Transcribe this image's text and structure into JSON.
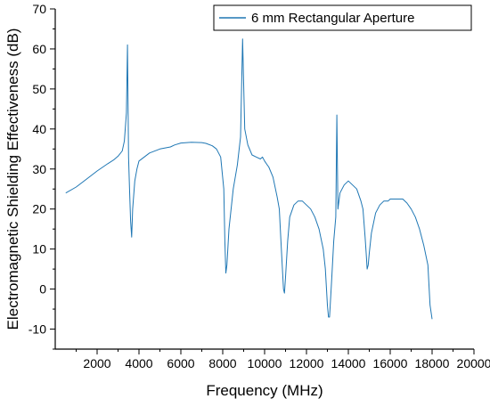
{
  "chart_data": {
    "type": "line",
    "title": "",
    "xlabel": "Frequency (MHz)",
    "ylabel": "Electromagnetic Shielding Effectiveness (dB)",
    "xlim": [
      0,
      20000
    ],
    "ylim": [
      -15,
      70
    ],
    "x_ticks": [
      2000,
      4000,
      6000,
      8000,
      10000,
      12000,
      14000,
      16000,
      18000,
      20000
    ],
    "x_tick_labels": [
      "2000",
      "4000",
      "6000",
      "8000",
      "10000",
      "12000",
      "14000",
      "16000",
      "18000",
      "20000"
    ],
    "y_ticks": [
      -10,
      0,
      10,
      20,
      30,
      40,
      50,
      60,
      70
    ],
    "y_tick_labels": [
      "-10",
      "0",
      "10",
      "20",
      "30",
      "40",
      "50",
      "60",
      "70"
    ],
    "grid": false,
    "legend_position": "top-right",
    "line_color": "#1f77b4",
    "series": [
      {
        "name": "6 mm Rectangular Aperture",
        "color": "#1f77b4",
        "x": [
          500,
          1000,
          1500,
          2000,
          2500,
          2800,
          3000,
          3200,
          3300,
          3400,
          3450,
          3500,
          3550,
          3600,
          3650,
          3700,
          3800,
          3900,
          4000,
          4500,
          5000,
          5500,
          5700,
          6000,
          6500,
          7000,
          7200,
          7500,
          7700,
          7900,
          8050,
          8100,
          8150,
          8200,
          8300,
          8500,
          8700,
          8850,
          8950,
          9050,
          9200,
          9400,
          9600,
          9800,
          9900,
          10000,
          10100,
          10200,
          10400,
          10600,
          10700,
          10800,
          10900,
          10950,
          11000,
          11100,
          11200,
          11400,
          11600,
          11800,
          12000,
          12200,
          12400,
          12600,
          12800,
          12900,
          13000,
          13050,
          13100,
          13200,
          13300,
          13400,
          13450,
          13500,
          13600,
          13800,
          14000,
          14200,
          14400,
          14600,
          14700,
          14800,
          14850,
          14900,
          14950,
          15000,
          15100,
          15300,
          15500,
          15700,
          15900,
          16000,
          16200,
          16400,
          16600,
          16800,
          17000,
          17200,
          17400,
          17600,
          17800,
          17900,
          18000
        ],
        "y": [
          24,
          25.5,
          27.5,
          29.5,
          31.3,
          32.3,
          33.2,
          34.5,
          37,
          44,
          61,
          33,
          25,
          17,
          13,
          20,
          27,
          30,
          32,
          34,
          35,
          35.5,
          36,
          36.5,
          36.7,
          36.6,
          36.4,
          35.8,
          35,
          33,
          25,
          12,
          4,
          6,
          15,
          25,
          31,
          38,
          62.5,
          40,
          36,
          33.5,
          33,
          32.5,
          33,
          32,
          31.2,
          30.5,
          28,
          23,
          20,
          10,
          0,
          -1,
          3,
          12,
          18,
          21,
          22,
          22,
          21,
          20,
          18,
          15,
          10,
          5,
          -4,
          -7,
          -7,
          2,
          12,
          18,
          43.5,
          20,
          24,
          26,
          27,
          26,
          25,
          22,
          20,
          13,
          9,
          5,
          6,
          9,
          14,
          19,
          21,
          22,
          22,
          22.5,
          22.5,
          22.5,
          22.5,
          21.5,
          20,
          18,
          15,
          11,
          6,
          -4,
          -7.5
        ]
      }
    ]
  }
}
